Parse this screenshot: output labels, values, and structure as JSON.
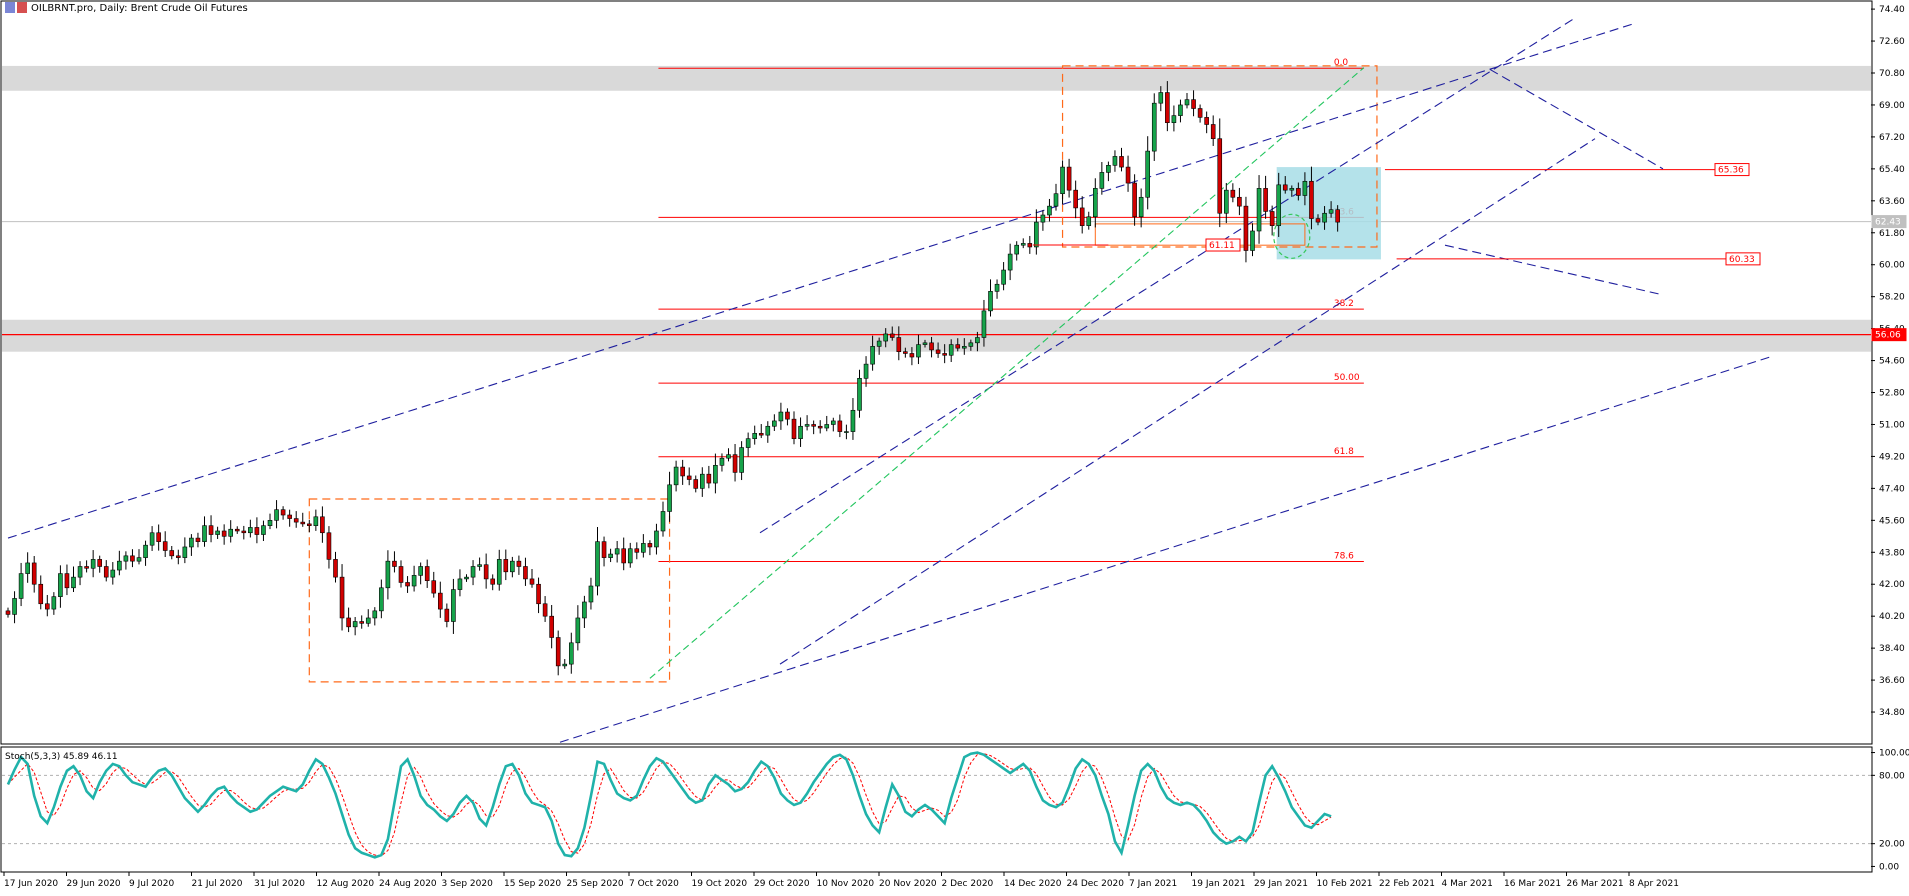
{
  "header": {
    "title": "OILBRNT.pro, Daily:  Brent Crude Oil Futures",
    "stoch_label": "Stoch(5,3,3) 45.89 46.11"
  },
  "colors": {
    "bull": "#16a34a",
    "bear": "#d10000",
    "fib": "#ff0000",
    "trend": "#1f1f9e",
    "green_trend": "#22c55e",
    "box": "#ff6a1a",
    "zone": "#d9d9d9",
    "cyan": "#a7dde6",
    "stoch_main": "#20b2aa",
    "stoch_signal": "#ff0000"
  },
  "chart_data": [
    {
      "type": "candlestick",
      "title": "OILBRNT.pro, Daily:  Brent Crude Oil Futures",
      "y_ticks": [
        74.4,
        72.6,
        70.8,
        69.0,
        67.2,
        65.4,
        63.6,
        61.8,
        60.0,
        58.2,
        56.4,
        54.6,
        52.8,
        51.0,
        49.2,
        47.4,
        45.6,
        43.8,
        42.0,
        40.2,
        38.4,
        36.6,
        34.8
      ],
      "ylim": [
        33.0,
        74.8
      ],
      "x_ticks": [
        "17 Jun 2020",
        "29 Jun 2020",
        "9 Jul 2020",
        "21 Jul 2020",
        "31 Jul 2020",
        "12 Aug 2020",
        "24 Aug 2020",
        "3 Sep 2020",
        "15 Sep 2020",
        "25 Sep 2020",
        "7 Oct 2020",
        "19 Oct 2020",
        "29 Oct 2020",
        "10 Nov 2020",
        "20 Nov 2020",
        "2 Dec 2020",
        "14 Dec 2020",
        "24 Dec 2020",
        "7 Jan 2021",
        "19 Jan 2021",
        "29 Jan 2021",
        "10 Feb 2021",
        "22 Feb 2021",
        "4 Mar 2021",
        "16 Mar 2021",
        "26 Mar 2021",
        "8 Apr 2021"
      ],
      "closes": [
        40.3,
        41.2,
        42.6,
        43.2,
        42.0,
        40.9,
        40.6,
        41.3,
        42.6,
        41.8,
        42.4,
        43.0,
        42.9,
        43.4,
        43.0,
        42.4,
        42.8,
        43.3,
        43.6,
        43.3,
        43.5,
        44.2,
        44.9,
        44.4,
        43.9,
        43.6,
        43.5,
        44.1,
        44.6,
        44.4,
        45.3,
        44.8,
        45.0,
        44.7,
        45.1,
        45.0,
        44.9,
        45.2,
        44.8,
        45.3,
        45.6,
        46.2,
        45.9,
        45.7,
        45.5,
        45.4,
        45.3,
        45.8,
        44.9,
        43.4,
        42.4,
        40.1,
        39.6,
        39.9,
        39.8,
        40.1,
        40.5,
        41.8,
        43.3,
        43.0,
        42.1,
        41.9,
        42.5,
        43.0,
        42.2,
        41.5,
        40.6,
        39.9,
        41.7,
        42.3,
        42.4,
        43.0,
        43.1,
        42.3,
        42.0,
        43.4,
        42.7,
        43.3,
        43.0,
        42.3,
        42.0,
        40.9,
        40.2,
        39.0,
        37.4,
        37.5,
        38.7,
        40.1,
        41.0,
        41.9,
        44.4,
        43.5,
        43.7,
        44.0,
        43.2,
        44.0,
        43.8,
        44.3,
        44.1,
        45.0,
        46.1,
        47.6,
        48.6,
        48.1,
        47.9,
        47.4,
        48.2,
        47.7,
        48.7,
        49.1,
        49.3,
        48.3,
        49.7,
        50.2,
        50.5,
        50.4,
        50.9,
        51.2,
        51.7,
        51.3,
        50.2,
        50.9,
        51.0,
        50.9,
        50.8,
        51.0,
        51.2,
        50.6,
        50.6,
        51.8,
        53.6,
        54.4,
        55.4,
        55.7,
        56.1,
        55.9,
        55.1,
        55.0,
        54.8,
        55.5,
        55.6,
        55.2,
        55.0,
        54.9,
        55.5,
        55.3,
        55.4,
        55.6,
        55.9,
        57.4,
        58.5,
        58.9,
        59.7,
        60.6,
        61.1,
        61.2,
        61.0,
        62.4,
        62.8,
        63.3,
        64.0,
        65.5,
        64.2,
        63.2,
        62.2,
        62.7,
        64.3,
        65.2,
        65.6,
        66.1,
        65.5,
        64.6,
        62.7,
        63.8,
        66.4,
        69.1,
        69.7,
        68.0,
        68.4,
        69.0,
        69.3,
        68.8,
        68.3,
        67.9,
        67.1,
        62.9,
        64.2,
        63.8,
        63.3,
        60.8,
        61.9,
        64.3,
        63.0,
        62.2,
        64.5,
        64.2,
        64.3,
        63.9,
        64.7,
        62.6,
        62.4,
        62.9,
        63.1,
        62.4
      ],
      "stoch_main": [
        72,
        85,
        96,
        90,
        62,
        44,
        38,
        52,
        70,
        84,
        88,
        80,
        66,
        60,
        74,
        84,
        90,
        88,
        80,
        74,
        72,
        70,
        78,
        84,
        86,
        80,
        70,
        60,
        54,
        48,
        54,
        62,
        68,
        70,
        62,
        56,
        52,
        48,
        50,
        56,
        62,
        66,
        70,
        68,
        66,
        72,
        84,
        94,
        90,
        78,
        64,
        46,
        28,
        16,
        12,
        10,
        8,
        10,
        24,
        56,
        88,
        94,
        80,
        62,
        54,
        50,
        44,
        40,
        46,
        56,
        62,
        56,
        42,
        36,
        52,
        72,
        88,
        90,
        80,
        64,
        56,
        54,
        52,
        40,
        20,
        10,
        9,
        16,
        34,
        62,
        92,
        90,
        76,
        64,
        60,
        58,
        62,
        76,
        88,
        95,
        92,
        84,
        76,
        68,
        60,
        56,
        58,
        72,
        80,
        76,
        72,
        66,
        68,
        74,
        84,
        92,
        88,
        78,
        64,
        58,
        54,
        56,
        64,
        74,
        82,
        90,
        96,
        98,
        94,
        80,
        62,
        46,
        36,
        30,
        52,
        72,
        62,
        48,
        44,
        50,
        54,
        50,
        44,
        38,
        60,
        78,
        96,
        99,
        100,
        98,
        94,
        90,
        86,
        82,
        86,
        90,
        84,
        70,
        58,
        54,
        52,
        56,
        70,
        86,
        94,
        90,
        80,
        62,
        46,
        22,
        12,
        36,
        62,
        84,
        90,
        84,
        70,
        60,
        56,
        54,
        56,
        54,
        48,
        40,
        30,
        24,
        20,
        22,
        26,
        22,
        30,
        56,
        80,
        88,
        78,
        66,
        52,
        44,
        36,
        34,
        40,
        46,
        44
      ]
    },
    {
      "type": "line",
      "title": "Stoch(5,3,3) 45.89 46.11",
      "y_ticks": [
        100.0,
        80.0,
        20.0,
        0.0
      ],
      "ylim": [
        -4,
        104
      ],
      "levels": [
        80,
        20
      ]
    }
  ],
  "fib_levels": [
    {
      "label": "0.0",
      "price": 71.07
    },
    {
      "label": "23.6",
      "price": 62.67
    },
    {
      "label": "38.2",
      "price": 57.5
    },
    {
      "label": "50.00",
      "price": 53.33
    },
    {
      "label": "61.8",
      "price": 49.18
    },
    {
      "label": "78.6",
      "price": 43.28
    }
  ],
  "price_tags": {
    "current": "62.43",
    "level_red": "56.06",
    "upper": "65.36",
    "lower": "60.33",
    "left": "61.11"
  }
}
